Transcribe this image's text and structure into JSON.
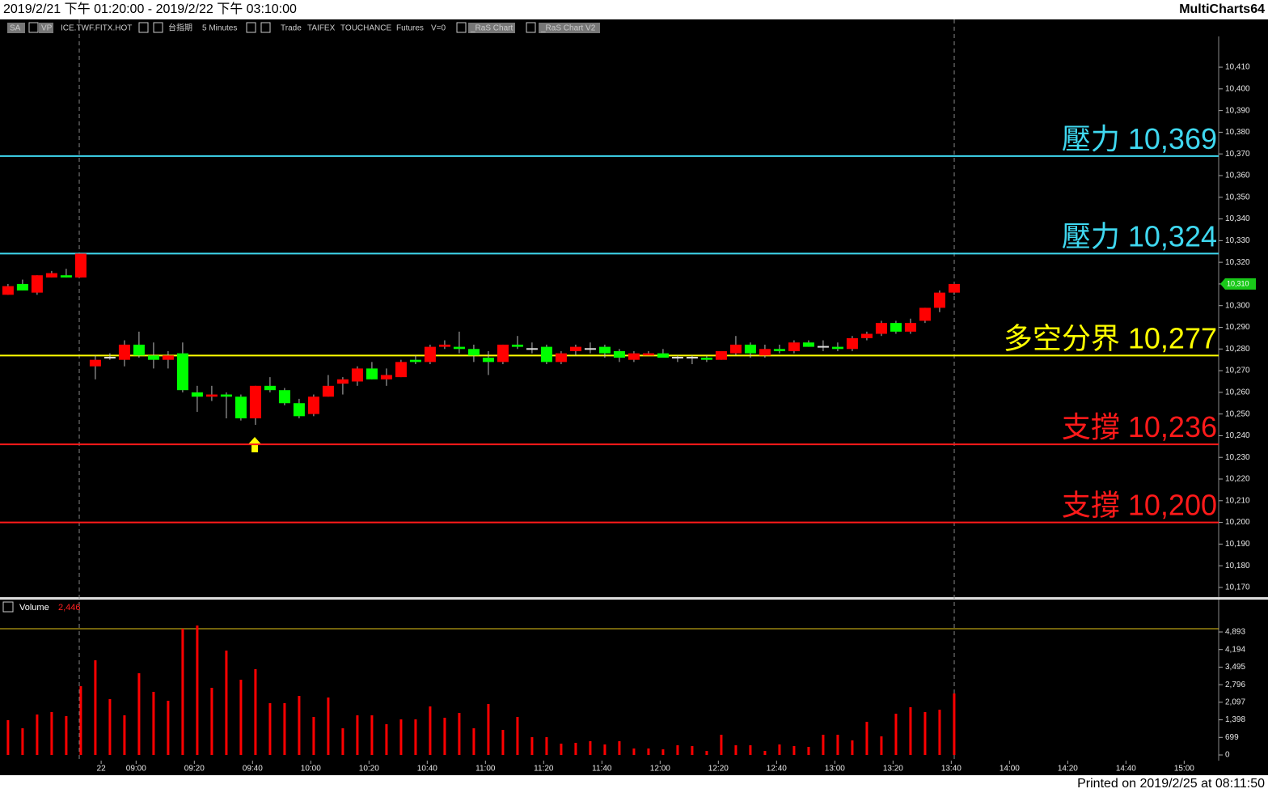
{
  "header": {
    "range": "2019/2/21 下午 01:20:00 - 2019/2/22 下午 03:10:00",
    "app": "MultiCharts64"
  },
  "toolbar": [
    "SA",
    "VP",
    "ICE.TWF.FITX.HOT",
    "台指期",
    "5 Minutes",
    "Trade",
    "TAIFEX",
    "TOUCHANCE",
    "Futures",
    "V=0",
    "_RaS Chart",
    "_RaS Chart V2"
  ],
  "footer": "Printed on 2019/2/25 at 08:11:50",
  "chart_data": [
    {
      "type": "candlestick",
      "up_color": "#ff0000",
      "down_color": "#00ff00",
      "xlim": [
        -0.55,
        83.17
      ],
      "ylim": [
        10165.5,
        10424.2
      ],
      "open": [
        10305,
        10310,
        10306,
        10313,
        10314,
        10313,
        10272,
        10276,
        10275,
        10282,
        10277,
        10275,
        10278,
        10260,
        10258,
        10259,
        10258,
        10248,
        10263,
        10261,
        10255,
        10250,
        10258,
        10264,
        10265,
        10271,
        10266,
        10267,
        10275,
        10274,
        10281,
        10281,
        10280,
        10276,
        10274,
        10282,
        10280,
        10281,
        10274,
        10279,
        10280,
        10281,
        10279,
        10275,
        10277,
        10278,
        10276,
        10276,
        10276,
        10275,
        10278,
        10282,
        10277,
        10280,
        10279,
        10283,
        10281,
        10281,
        10280,
        10285,
        10287,
        10292,
        10288,
        10293,
        10299,
        10306
      ],
      "high": [
        10310,
        10312,
        10314,
        10316,
        10317,
        10324,
        10277,
        10278,
        10284,
        10288,
        10283,
        10279,
        10283,
        10263,
        10263,
        10260,
        10259,
        10263,
        10267,
        10262,
        10257,
        10259,
        10268,
        10267,
        10272,
        10274,
        10271,
        10275,
        10277,
        10282,
        10284,
        10288,
        10282,
        10279,
        10282,
        10286,
        10283,
        10282,
        10279,
        10282,
        10283,
        10282,
        10280,
        10279,
        10279,
        10280,
        10277,
        10277,
        10277,
        10279,
        10286,
        10283,
        10282,
        10282,
        10284,
        10284,
        10284,
        10283,
        10286,
        10288,
        10293,
        10293,
        10294,
        10299,
        10307,
        10310
      ],
      "low": [
        10305,
        10307,
        10305,
        10313,
        10313,
        10313,
        10266,
        10275,
        10272,
        10276,
        10271,
        10271,
        10260,
        10251,
        10256,
        10248,
        10247,
        10245,
        10260,
        10254,
        10248,
        10249,
        10258,
        10259,
        10263,
        10266,
        10263,
        10267,
        10273,
        10273,
        10280,
        10278,
        10274,
        10268,
        10273,
        10280,
        10278,
        10273,
        10273,
        10277,
        10278,
        10276,
        10274,
        10274,
        10277,
        10276,
        10274,
        10273,
        10274,
        10275,
        10277,
        10276,
        10276,
        10278,
        10278,
        10281,
        10279,
        10279,
        10279,
        10284,
        10286,
        10287,
        10287,
        10292,
        10297,
        10305
      ],
      "close": [
        10309,
        10307,
        10314,
        10315,
        10313,
        10324,
        10275,
        10276,
        10282,
        10277,
        10275,
        10277,
        10261,
        10258,
        10259,
        10258,
        10248,
        10263,
        10261,
        10255,
        10249,
        10258,
        10263,
        10266,
        10271,
        10266,
        10268,
        10274,
        10274,
        10281,
        10282,
        10280,
        10277,
        10274,
        10282,
        10281,
        10280,
        10274,
        10278,
        10281,
        10280,
        10278,
        10276,
        10278,
        10278,
        10276,
        10276,
        10276,
        10275,
        10279,
        10282,
        10278,
        10280,
        10279,
        10283,
        10281,
        10281,
        10280,
        10285,
        10287,
        10292,
        10288,
        10292,
        10299,
        10306,
        10310
      ],
      "last_price_label": "10,310",
      "levels": [
        {
          "name": "壓力",
          "value": 10369,
          "label": "10,369",
          "color": "#3fd8f0"
        },
        {
          "name": "壓力",
          "value": 10324,
          "label": "10,324",
          "color": "#3fd8f0"
        },
        {
          "name": "多空分界",
          "value": 10277,
          "label": "10,277",
          "color": "#ffff00"
        },
        {
          "name": "支撐",
          "value": 10236,
          "label": "10,236",
          "color": "#ff1a1a"
        },
        {
          "name": "支撐",
          "value": 10200,
          "label": "10,200",
          "color": "#ff1a1a"
        }
      ],
      "yticks": [
        {
          "value": 10170,
          "label": "10,170"
        },
        {
          "value": 10180,
          "label": "10,180"
        },
        {
          "value": 10190,
          "label": "10,190"
        },
        {
          "value": 10200,
          "label": "10,200"
        },
        {
          "value": 10210,
          "label": "10,210"
        },
        {
          "value": 10220,
          "label": "10,220"
        },
        {
          "value": 10230,
          "label": "10,230"
        },
        {
          "value": 10240,
          "label": "10,240"
        },
        {
          "value": 10250,
          "label": "10,250"
        },
        {
          "value": 10260,
          "label": "10,260"
        },
        {
          "value": 10270,
          "label": "10,270"
        },
        {
          "value": 10280,
          "label": "10,280"
        },
        {
          "value": 10290,
          "label": "10,290"
        },
        {
          "value": 10300,
          "label": "10,300"
        },
        {
          "value": 10310,
          "label": "10,310"
        },
        {
          "value": 10320,
          "label": "10,320"
        },
        {
          "value": 10330,
          "label": "10,330"
        },
        {
          "value": 10340,
          "label": "10,340"
        },
        {
          "value": 10350,
          "label": "10,350"
        },
        {
          "value": 10360,
          "label": "10,360"
        },
        {
          "value": 10370,
          "label": "10,370"
        },
        {
          "value": 10380,
          "label": "10,380"
        },
        {
          "value": 10390,
          "label": "10,390"
        },
        {
          "value": 10400,
          "label": "10,400"
        },
        {
          "value": 10410,
          "label": "10,410"
        }
      ]
    },
    {
      "type": "bar",
      "legend_label": "Volume",
      "last_value_label": "2,446",
      "color": "#ff0000",
      "xlim": [
        -0.55,
        83.17
      ],
      "ylim": [
        -225,
        6148
      ],
      "values": [
        1384,
        1062,
        1610,
        1706,
        1545,
        2736,
        3766,
        2221,
        1577,
        3251,
        2511,
        2157,
        5022,
        5150,
        2672,
        4153,
        2994,
        3412,
        2060,
        2060,
        2350,
        1513,
        2286,
        1062,
        1577,
        1577,
        1223,
        1416,
        1416,
        1931,
        1481,
        1674,
        1062,
        2028,
        998,
        1513,
        708,
        708,
        451,
        483,
        547,
        418,
        547,
        258,
        258,
        225,
        386,
        354,
        161,
        805,
        386,
        386,
        161,
        418,
        354,
        322,
        805,
        805,
        579,
        1320,
        740,
        1642,
        1899,
        1706,
        1800,
        2446
      ],
      "yticks": [
        0,
        699,
        {
          "value": 1398,
          "label": "1,398"
        },
        {
          "value": 2097,
          "label": "2,097"
        },
        {
          "value": 2796,
          "label": "2,796"
        },
        {
          "value": 3495,
          "label": "3,495"
        },
        {
          "value": 4194,
          "label": "4,194"
        },
        {
          "value": 4893,
          "label": "4,893"
        }
      ],
      "xticks": [
        {
          "value": 6.4,
          "label": "22"
        },
        {
          "value": 8.8,
          "label": "09:00"
        },
        {
          "value": 12.8,
          "label": "09:20"
        },
        {
          "value": 16.8,
          "label": "09:40"
        },
        {
          "value": 20.8,
          "label": "10:00"
        },
        {
          "value": 24.8,
          "label": "10:20"
        },
        {
          "value": 28.8,
          "label": "10:40"
        },
        {
          "value": 32.8,
          "label": "11:00"
        },
        {
          "value": 36.8,
          "label": "11:20"
        },
        {
          "value": 40.8,
          "label": "11:40"
        },
        {
          "value": 44.8,
          "label": "12:00"
        },
        {
          "value": 48.8,
          "label": "12:20"
        },
        {
          "value": 52.8,
          "label": "12:40"
        },
        {
          "value": 56.8,
          "label": "13:00"
        },
        {
          "value": 60.8,
          "label": "13:20"
        },
        {
          "value": 64.8,
          "label": "13:40"
        },
        {
          "value": 68.8,
          "label": "14:00"
        },
        {
          "value": 72.8,
          "label": "14:20"
        },
        {
          "value": 76.8,
          "label": "14:40"
        },
        {
          "value": 80.8,
          "label": "15:00"
        }
      ]
    }
  ]
}
